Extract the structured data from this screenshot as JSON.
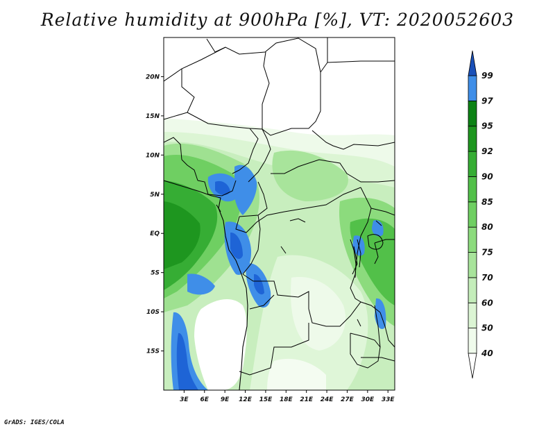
{
  "title": "Relative humidity at 900hPa [%], VT: 2020052603",
  "credit": "GrADS: IGES/COLA",
  "map": {
    "lon_range": [
      0,
      34
    ],
    "lat_range": [
      -20,
      25
    ],
    "x_ticks": [
      {
        "value": 3,
        "label": "3E"
      },
      {
        "value": 6,
        "label": "6E"
      },
      {
        "value": 9,
        "label": "9E"
      },
      {
        "value": 12,
        "label": "12E"
      },
      {
        "value": 15,
        "label": "15E"
      },
      {
        "value": 18,
        "label": "18E"
      },
      {
        "value": 21,
        "label": "21E"
      },
      {
        "value": 24,
        "label": "24E"
      },
      {
        "value": 27,
        "label": "27E"
      },
      {
        "value": 30,
        "label": "30E"
      },
      {
        "value": 33,
        "label": "33E"
      }
    ],
    "y_ticks": [
      {
        "value": 20,
        "label": "20N"
      },
      {
        "value": 15,
        "label": "15N"
      },
      {
        "value": 10,
        "label": "10N"
      },
      {
        "value": 5,
        "label": "5N"
      },
      {
        "value": 0,
        "label": "EQ"
      },
      {
        "value": -5,
        "label": "5S"
      },
      {
        "value": -10,
        "label": "10S"
      },
      {
        "value": -15,
        "label": "15S"
      }
    ]
  },
  "colorbar": {
    "levels": [
      {
        "label": "40",
        "color": "#f0fbec"
      },
      {
        "label": "50",
        "color": "#dcf5d4"
      },
      {
        "label": "60",
        "color": "#c4edba"
      },
      {
        "label": "70",
        "color": "#a8e49b"
      },
      {
        "label": "75",
        "color": "#8cdb7d"
      },
      {
        "label": "80",
        "color": "#6fcf62"
      },
      {
        "label": "85",
        "color": "#52c049"
      },
      {
        "label": "90",
        "color": "#36ad34"
      },
      {
        "label": "92",
        "color": "#1e961f"
      },
      {
        "label": "95",
        "color": "#0c8214"
      },
      {
        "label": "97",
        "color": "#3f8ee8"
      },
      {
        "label": "99",
        "color": "#1e64d6"
      }
    ],
    "below_color": "#ffffff",
    "above_color": "#1a50b8"
  }
}
